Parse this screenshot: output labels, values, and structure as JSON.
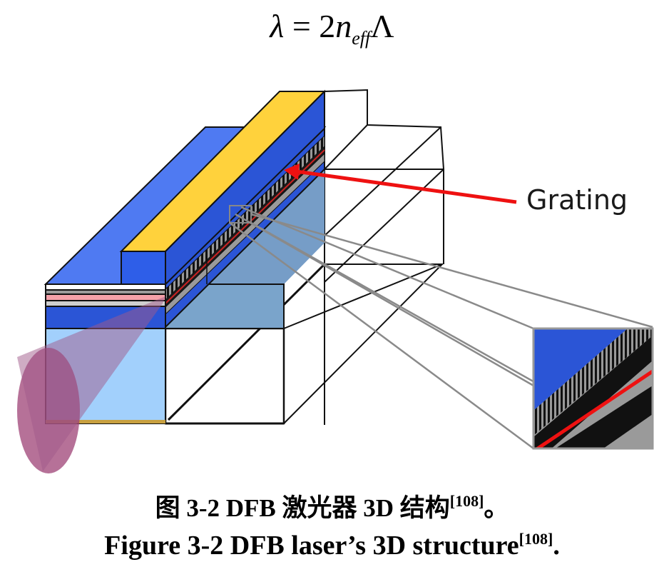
{
  "formula": {
    "lambda": "λ",
    "equals": " = 2",
    "n": "n",
    "sub": "eff",
    "Lambda": "Λ"
  },
  "labels": {
    "grating": "Grating"
  },
  "captions": {
    "cn_main": "图 3-2 DFB 激光器 3D 结构",
    "cn_ref": "[108]",
    "cn_end": "。",
    "en_main": "Figure 3-2 DFB laser’s 3D structure",
    "en_ref": "[108]",
    "en_end": "."
  },
  "colors": {
    "dark_blue": "#2b55d6",
    "bright_blue": "#4f7af2",
    "light_blue": "#a2d0fc",
    "side_blue": "#7aa4cb",
    "gold": "#ffd23c",
    "red_arrow": "#ee1111",
    "beam": "#9a3a70"
  }
}
